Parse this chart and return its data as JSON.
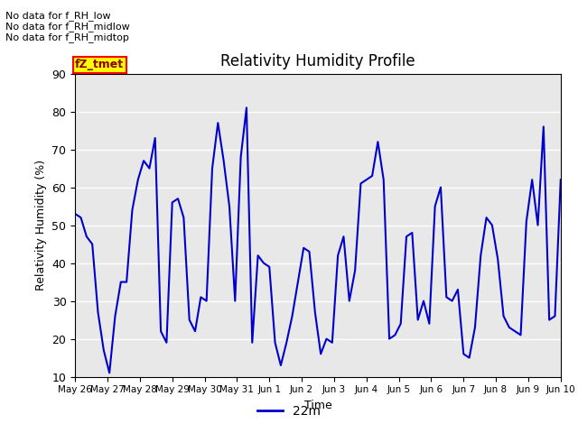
{
  "title": "Relativity Humidity Profile",
  "xlabel": "Time",
  "ylabel": "Relativity Humidity (%)",
  "ylim": [
    10,
    90
  ],
  "yticks": [
    10,
    20,
    30,
    40,
    50,
    60,
    70,
    80,
    90
  ],
  "line_color": "#0000cc",
  "line_width": 1.5,
  "legend_label": "22m",
  "legend_color": "#0000cc",
  "bg_color": "#e8e8e8",
  "annotations": [
    "No data for f_RH_low",
    "No data for f_RH_midlow",
    "No data for f_RH_midtop"
  ],
  "annotation_box_text": "fZ_tmet",
  "x_tick_labels": [
    "May 26",
    "May 27",
    "May 28",
    "May 29",
    "May 30",
    "May 31",
    "Jun 1",
    "Jun 2",
    "Jun 3",
    "Jun 4",
    "Jun 5",
    "Jun 6",
    "Jun 7",
    "Jun 8",
    "Jun 9",
    "Jun 10"
  ],
  "y_values": [
    53,
    52,
    47,
    45,
    27,
    17,
    11,
    26,
    35,
    35,
    54,
    62,
    67,
    65,
    73,
    22,
    19,
    56,
    57,
    52,
    25,
    22,
    31,
    30,
    65,
    77,
    67,
    55,
    30,
    68,
    81,
    19,
    42,
    40,
    39,
    19,
    13,
    19,
    26,
    35,
    44,
    43,
    27,
    16,
    20,
    19,
    42,
    47,
    30,
    38,
    61,
    62,
    63,
    72,
    62,
    20,
    21,
    24,
    47,
    48,
    25,
    30,
    24,
    55,
    60,
    31,
    30,
    33,
    16,
    15,
    23,
    42,
    52,
    50,
    41,
    26,
    23,
    22,
    21,
    51,
    62,
    50,
    76,
    25,
    26,
    62
  ]
}
